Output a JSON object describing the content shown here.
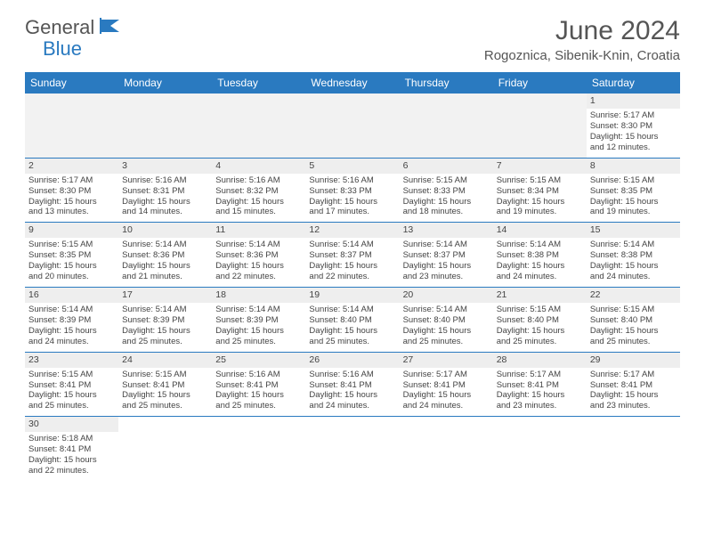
{
  "logo": {
    "general": "General",
    "blue": "Blue"
  },
  "title": "June 2024",
  "location": "Rogoznica, Sibenik-Knin, Croatia",
  "weekdays": [
    "Sunday",
    "Monday",
    "Tuesday",
    "Wednesday",
    "Thursday",
    "Friday",
    "Saturday"
  ],
  "colors": {
    "header_bg": "#2a7ac0",
    "header_text": "#ffffff",
    "row_border": "#2a7ac0",
    "shaded": "#f2f2f2"
  },
  "weeks": [
    [
      null,
      null,
      null,
      null,
      null,
      null,
      {
        "day": "1",
        "sunrise": "Sunrise: 5:17 AM",
        "sunset": "Sunset: 8:30 PM",
        "daylight1": "Daylight: 15 hours",
        "daylight2": "and 12 minutes."
      }
    ],
    [
      {
        "day": "2",
        "sunrise": "Sunrise: 5:17 AM",
        "sunset": "Sunset: 8:30 PM",
        "daylight1": "Daylight: 15 hours",
        "daylight2": "and 13 minutes."
      },
      {
        "day": "3",
        "sunrise": "Sunrise: 5:16 AM",
        "sunset": "Sunset: 8:31 PM",
        "daylight1": "Daylight: 15 hours",
        "daylight2": "and 14 minutes."
      },
      {
        "day": "4",
        "sunrise": "Sunrise: 5:16 AM",
        "sunset": "Sunset: 8:32 PM",
        "daylight1": "Daylight: 15 hours",
        "daylight2": "and 15 minutes."
      },
      {
        "day": "5",
        "sunrise": "Sunrise: 5:16 AM",
        "sunset": "Sunset: 8:33 PM",
        "daylight1": "Daylight: 15 hours",
        "daylight2": "and 17 minutes."
      },
      {
        "day": "6",
        "sunrise": "Sunrise: 5:15 AM",
        "sunset": "Sunset: 8:33 PM",
        "daylight1": "Daylight: 15 hours",
        "daylight2": "and 18 minutes."
      },
      {
        "day": "7",
        "sunrise": "Sunrise: 5:15 AM",
        "sunset": "Sunset: 8:34 PM",
        "daylight1": "Daylight: 15 hours",
        "daylight2": "and 19 minutes."
      },
      {
        "day": "8",
        "sunrise": "Sunrise: 5:15 AM",
        "sunset": "Sunset: 8:35 PM",
        "daylight1": "Daylight: 15 hours",
        "daylight2": "and 19 minutes."
      }
    ],
    [
      {
        "day": "9",
        "sunrise": "Sunrise: 5:15 AM",
        "sunset": "Sunset: 8:35 PM",
        "daylight1": "Daylight: 15 hours",
        "daylight2": "and 20 minutes."
      },
      {
        "day": "10",
        "sunrise": "Sunrise: 5:14 AM",
        "sunset": "Sunset: 8:36 PM",
        "daylight1": "Daylight: 15 hours",
        "daylight2": "and 21 minutes."
      },
      {
        "day": "11",
        "sunrise": "Sunrise: 5:14 AM",
        "sunset": "Sunset: 8:36 PM",
        "daylight1": "Daylight: 15 hours",
        "daylight2": "and 22 minutes."
      },
      {
        "day": "12",
        "sunrise": "Sunrise: 5:14 AM",
        "sunset": "Sunset: 8:37 PM",
        "daylight1": "Daylight: 15 hours",
        "daylight2": "and 22 minutes."
      },
      {
        "day": "13",
        "sunrise": "Sunrise: 5:14 AM",
        "sunset": "Sunset: 8:37 PM",
        "daylight1": "Daylight: 15 hours",
        "daylight2": "and 23 minutes."
      },
      {
        "day": "14",
        "sunrise": "Sunrise: 5:14 AM",
        "sunset": "Sunset: 8:38 PM",
        "daylight1": "Daylight: 15 hours",
        "daylight2": "and 24 minutes."
      },
      {
        "day": "15",
        "sunrise": "Sunrise: 5:14 AM",
        "sunset": "Sunset: 8:38 PM",
        "daylight1": "Daylight: 15 hours",
        "daylight2": "and 24 minutes."
      }
    ],
    [
      {
        "day": "16",
        "sunrise": "Sunrise: 5:14 AM",
        "sunset": "Sunset: 8:39 PM",
        "daylight1": "Daylight: 15 hours",
        "daylight2": "and 24 minutes."
      },
      {
        "day": "17",
        "sunrise": "Sunrise: 5:14 AM",
        "sunset": "Sunset: 8:39 PM",
        "daylight1": "Daylight: 15 hours",
        "daylight2": "and 25 minutes."
      },
      {
        "day": "18",
        "sunrise": "Sunrise: 5:14 AM",
        "sunset": "Sunset: 8:39 PM",
        "daylight1": "Daylight: 15 hours",
        "daylight2": "and 25 minutes."
      },
      {
        "day": "19",
        "sunrise": "Sunrise: 5:14 AM",
        "sunset": "Sunset: 8:40 PM",
        "daylight1": "Daylight: 15 hours",
        "daylight2": "and 25 minutes."
      },
      {
        "day": "20",
        "sunrise": "Sunrise: 5:14 AM",
        "sunset": "Sunset: 8:40 PM",
        "daylight1": "Daylight: 15 hours",
        "daylight2": "and 25 minutes."
      },
      {
        "day": "21",
        "sunrise": "Sunrise: 5:15 AM",
        "sunset": "Sunset: 8:40 PM",
        "daylight1": "Daylight: 15 hours",
        "daylight2": "and 25 minutes."
      },
      {
        "day": "22",
        "sunrise": "Sunrise: 5:15 AM",
        "sunset": "Sunset: 8:40 PM",
        "daylight1": "Daylight: 15 hours",
        "daylight2": "and 25 minutes."
      }
    ],
    [
      {
        "day": "23",
        "sunrise": "Sunrise: 5:15 AM",
        "sunset": "Sunset: 8:41 PM",
        "daylight1": "Daylight: 15 hours",
        "daylight2": "and 25 minutes."
      },
      {
        "day": "24",
        "sunrise": "Sunrise: 5:15 AM",
        "sunset": "Sunset: 8:41 PM",
        "daylight1": "Daylight: 15 hours",
        "daylight2": "and 25 minutes."
      },
      {
        "day": "25",
        "sunrise": "Sunrise: 5:16 AM",
        "sunset": "Sunset: 8:41 PM",
        "daylight1": "Daylight: 15 hours",
        "daylight2": "and 25 minutes."
      },
      {
        "day": "26",
        "sunrise": "Sunrise: 5:16 AM",
        "sunset": "Sunset: 8:41 PM",
        "daylight1": "Daylight: 15 hours",
        "daylight2": "and 24 minutes."
      },
      {
        "day": "27",
        "sunrise": "Sunrise: 5:17 AM",
        "sunset": "Sunset: 8:41 PM",
        "daylight1": "Daylight: 15 hours",
        "daylight2": "and 24 minutes."
      },
      {
        "day": "28",
        "sunrise": "Sunrise: 5:17 AM",
        "sunset": "Sunset: 8:41 PM",
        "daylight1": "Daylight: 15 hours",
        "daylight2": "and 23 minutes."
      },
      {
        "day": "29",
        "sunrise": "Sunrise: 5:17 AM",
        "sunset": "Sunset: 8:41 PM",
        "daylight1": "Daylight: 15 hours",
        "daylight2": "and 23 minutes."
      }
    ],
    [
      {
        "day": "30",
        "sunrise": "Sunrise: 5:18 AM",
        "sunset": "Sunset: 8:41 PM",
        "daylight1": "Daylight: 15 hours",
        "daylight2": "and 22 minutes."
      },
      null,
      null,
      null,
      null,
      null,
      null
    ]
  ]
}
